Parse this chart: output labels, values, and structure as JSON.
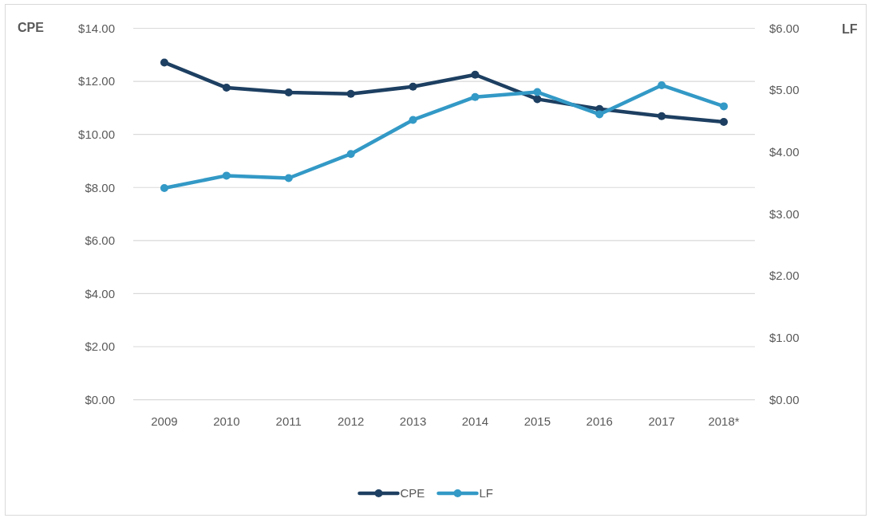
{
  "chart_data": {
    "type": "line",
    "ylabel": "CPE",
    "y2label": "LF",
    "categories": [
      "2009",
      "2010",
      "2011",
      "2012",
      "2013",
      "2014",
      "2015",
      "2016",
      "2017",
      "2018*"
    ],
    "series": [
      {
        "name": "CPE",
        "color": "#1d3f61",
        "values": [
          12.71,
          11.76,
          11.58,
          11.53,
          11.8,
          12.25,
          11.33,
          10.96,
          10.69,
          10.47
        ]
      },
      {
        "name": "LF",
        "color": "#3399c6",
        "axis": "y2",
        "values": [
          3.42,
          3.62,
          3.58,
          3.97,
          4.52,
          4.89,
          4.97,
          4.61,
          5.08,
          4.74
        ]
      }
    ],
    "ylim": [
      0,
      14
    ],
    "yticks": [
      {
        "value": 0,
        "label": "$0.00"
      },
      {
        "value": 2,
        "label": "$2.00"
      },
      {
        "value": 4,
        "label": "$4.00"
      },
      {
        "value": 6,
        "label": "$6.00"
      },
      {
        "value": 8,
        "label": "$8.00"
      },
      {
        "value": 10,
        "label": "$10.00"
      },
      {
        "value": 12,
        "label": "$12.00"
      },
      {
        "value": 14,
        "label": "$14.00"
      }
    ],
    "y2lim": [
      0,
      6
    ],
    "y2ticks": [
      {
        "value": 0,
        "label": "$0.00"
      },
      {
        "value": 1,
        "label": "$1.00"
      },
      {
        "value": 2,
        "label": "$2.00"
      },
      {
        "value": 3,
        "label": "$3.00"
      },
      {
        "value": 4,
        "label": "$4.00"
      },
      {
        "value": 5,
        "label": "$5.00"
      },
      {
        "value": 6,
        "label": "$6.00"
      }
    ],
    "grid": "y",
    "legend": "bottom",
    "marker": "circle"
  }
}
